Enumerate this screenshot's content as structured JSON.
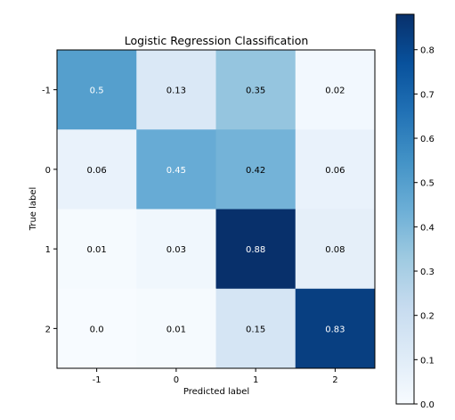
{
  "chart_data": {
    "type": "heatmap",
    "title": "Logistic Regression Classification",
    "xlabel": "Predicted label",
    "ylabel": "True label",
    "x_categories": [
      "-1",
      "0",
      "1",
      "2"
    ],
    "y_categories": [
      "-1",
      "0",
      "1",
      "2"
    ],
    "values": [
      [
        0.5,
        0.13,
        0.35,
        0.02
      ],
      [
        0.06,
        0.45,
        0.42,
        0.06
      ],
      [
        0.01,
        0.03,
        0.88,
        0.08
      ],
      [
        0.0,
        0.01,
        0.15,
        0.83
      ]
    ],
    "cell_labels": [
      [
        "0.5",
        "0.13",
        "0.35",
        "0.02"
      ],
      [
        "0.06",
        "0.45",
        "0.42",
        "0.06"
      ],
      [
        "0.01",
        "0.03",
        "0.88",
        "0.08"
      ],
      [
        "0.0",
        "0.01",
        "0.15",
        "0.83"
      ]
    ],
    "colormap": "Blues",
    "color_range": [
      0.0,
      0.88
    ],
    "colorbar_ticks": [
      "0.0",
      "0.1",
      "0.2",
      "0.3",
      "0.4",
      "0.5",
      "0.6",
      "0.7",
      "0.8"
    ],
    "colorbar_tick_values": [
      0.0,
      0.1,
      0.2,
      0.3,
      0.4,
      0.5,
      0.6,
      0.7,
      0.8
    ],
    "grid": false,
    "colorbar_position": "right"
  }
}
